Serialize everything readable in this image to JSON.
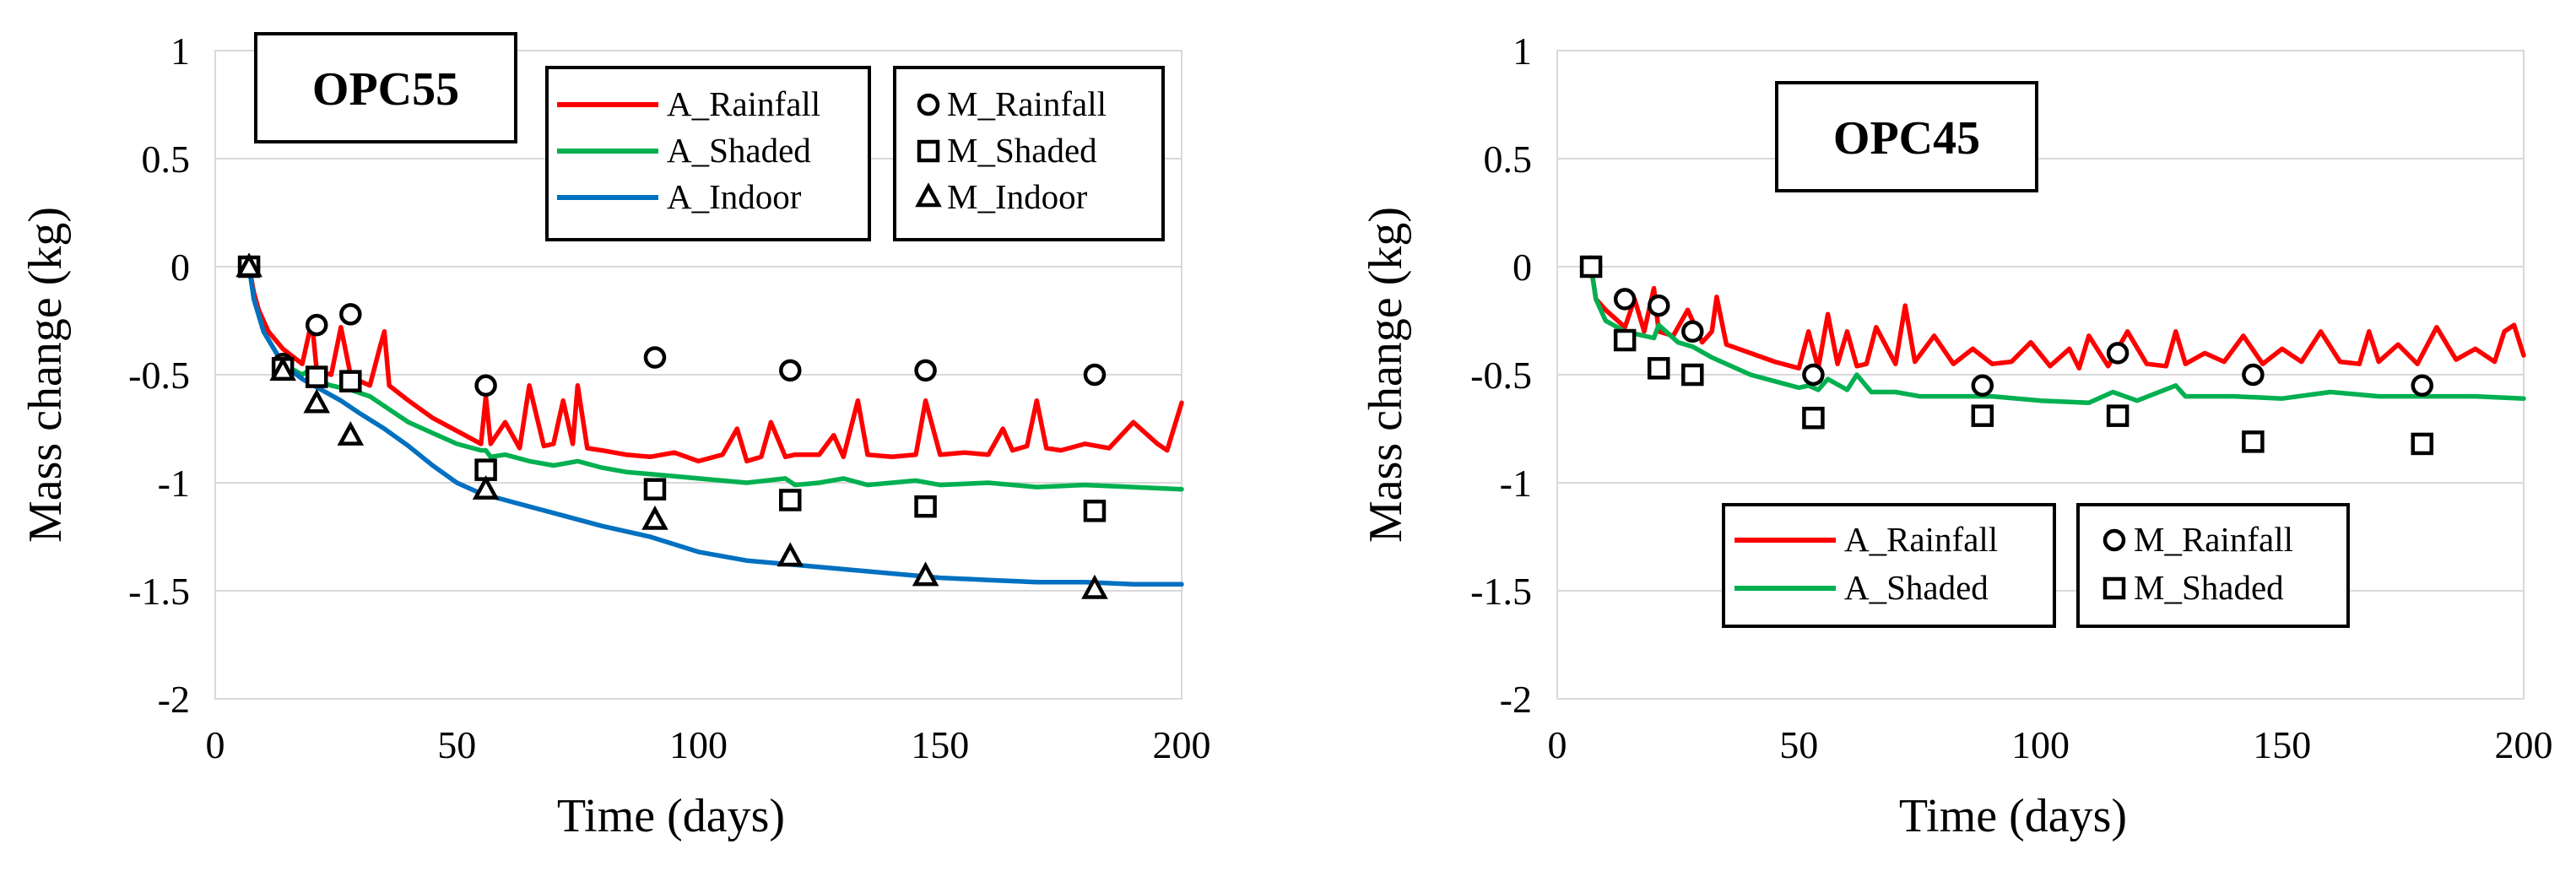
{
  "chart_data": [
    {
      "type": "line",
      "title": "OPC55",
      "xlabel": "Time (days)",
      "ylabel": "Mass change (kg)",
      "xlim": [
        0,
        200
      ],
      "ylim": [
        -2,
        1
      ],
      "xticks": [
        0,
        50,
        100,
        150,
        200
      ],
      "yticks": [
        1,
        0.5,
        0,
        -0.5,
        -1,
        -1.5,
        -2
      ],
      "grid": true,
      "series": [
        {
          "name": "A_Rainfall",
          "kind": "line",
          "color": "#ff0000",
          "x": [
            7,
            8,
            9,
            11,
            14,
            18,
            20,
            21,
            24,
            26,
            28,
            30,
            32,
            34,
            35,
            36,
            40,
            45,
            50,
            55,
            56,
            57,
            60,
            63,
            65,
            68,
            70,
            72,
            74,
            75,
            77,
            80,
            85,
            90,
            95,
            100,
            105,
            108,
            110,
            113,
            115,
            118,
            120,
            125,
            128,
            130,
            133,
            135,
            140,
            145,
            147,
            150,
            155,
            160,
            163,
            165,
            168,
            170,
            172,
            175,
            180,
            185,
            190,
            195,
            197,
            200
          ],
          "y": [
            0,
            -0.12,
            -0.2,
            -0.3,
            -0.38,
            -0.45,
            -0.25,
            -0.48,
            -0.5,
            -0.28,
            -0.5,
            -0.53,
            -0.55,
            -0.38,
            -0.3,
            -0.55,
            -0.62,
            -0.7,
            -0.76,
            -0.82,
            -0.6,
            -0.82,
            -0.72,
            -0.84,
            -0.55,
            -0.83,
            -0.82,
            -0.62,
            -0.82,
            -0.55,
            -0.84,
            -0.85,
            -0.87,
            -0.88,
            -0.86,
            -0.9,
            -0.87,
            -0.75,
            -0.9,
            -0.88,
            -0.72,
            -0.88,
            -0.87,
            -0.87,
            -0.78,
            -0.88,
            -0.62,
            -0.87,
            -0.88,
            -0.87,
            -0.62,
            -0.87,
            -0.86,
            -0.87,
            -0.75,
            -0.85,
            -0.83,
            -0.62,
            -0.84,
            -0.85,
            -0.82,
            -0.84,
            -0.72,
            -0.82,
            -0.85,
            -0.63
          ]
        },
        {
          "name": "A_Shaded",
          "kind": "line",
          "color": "#00b050",
          "x": [
            7,
            8,
            10,
            14,
            18,
            20,
            21,
            24,
            28,
            32,
            36,
            40,
            45,
            50,
            55,
            56,
            57,
            60,
            65,
            70,
            75,
            80,
            85,
            90,
            95,
            100,
            110,
            118,
            120,
            125,
            130,
            135,
            140,
            145,
            150,
            160,
            170,
            180,
            190,
            200
          ],
          "y": [
            0,
            -0.15,
            -0.3,
            -0.45,
            -0.5,
            -0.47,
            -0.53,
            -0.55,
            -0.57,
            -0.6,
            -0.66,
            -0.72,
            -0.77,
            -0.82,
            -0.85,
            -0.85,
            -0.88,
            -0.87,
            -0.9,
            -0.92,
            -0.9,
            -0.93,
            -0.95,
            -0.96,
            -0.97,
            -0.98,
            -1.0,
            -0.98,
            -1.01,
            -1.0,
            -0.98,
            -1.01,
            -1.0,
            -0.99,
            -1.01,
            -1.0,
            -1.02,
            -1.01,
            -1.02,
            -1.03
          ]
        },
        {
          "name": "A_Indoor",
          "kind": "line",
          "color": "#0070c0",
          "x": [
            7,
            8,
            10,
            14,
            18,
            22,
            26,
            30,
            35,
            40,
            45,
            50,
            55,
            60,
            65,
            70,
            80,
            90,
            100,
            110,
            120,
            130,
            140,
            150,
            160,
            170,
            180,
            190,
            200
          ],
          "y": [
            0,
            -0.15,
            -0.3,
            -0.45,
            -0.52,
            -0.57,
            -0.62,
            -0.68,
            -0.75,
            -0.83,
            -0.92,
            -1.0,
            -1.05,
            -1.08,
            -1.11,
            -1.14,
            -1.2,
            -1.25,
            -1.32,
            -1.36,
            -1.38,
            -1.4,
            -1.42,
            -1.44,
            -1.45,
            -1.46,
            -1.46,
            -1.47,
            -1.47
          ]
        },
        {
          "name": "M_Rainfall",
          "kind": "marker",
          "marker": "circle",
          "x": [
            7,
            14,
            21,
            28,
            56,
            91,
            119,
            147,
            182
          ],
          "y": [
            0,
            -0.45,
            -0.27,
            -0.22,
            -0.55,
            -0.42,
            -0.48,
            -0.48,
            -0.5
          ]
        },
        {
          "name": "M_Shaded",
          "kind": "marker",
          "marker": "square",
          "x": [
            7,
            14,
            21,
            28,
            56,
            91,
            119,
            147,
            182
          ],
          "y": [
            0,
            -0.47,
            -0.51,
            -0.53,
            -0.94,
            -1.03,
            -1.08,
            -1.11,
            -1.13
          ]
        },
        {
          "name": "M_Indoor",
          "kind": "marker",
          "marker": "triangle",
          "x": [
            7,
            14,
            21,
            28,
            56,
            91,
            119,
            147,
            182
          ],
          "y": [
            0,
            -0.48,
            -0.63,
            -0.78,
            -1.03,
            -1.17,
            -1.34,
            -1.43,
            -1.49
          ]
        }
      ],
      "legend": [
        {
          "position": "top-center",
          "entries": [
            "A_Rainfall",
            "A_Shaded",
            "A_Indoor"
          ]
        },
        {
          "position": "top-right",
          "entries": [
            "M_Rainfall",
            "M_Shaded",
            "M_Indoor"
          ]
        }
      ]
    },
    {
      "type": "line",
      "title": "OPC45",
      "xlabel": "Time (days)",
      "ylabel": "Mass change (kg)",
      "xlim": [
        0,
        200
      ],
      "ylim": [
        -2,
        1
      ],
      "xticks": [
        0,
        50,
        100,
        150,
        200
      ],
      "yticks": [
        1,
        0.5,
        0,
        -0.5,
        -1,
        -1.5,
        -2
      ],
      "grid": true,
      "series": [
        {
          "name": "A_Rainfall",
          "kind": "line",
          "color": "#ff0000",
          "x": [
            7,
            8,
            10,
            14,
            16,
            18,
            20,
            21,
            24,
            27,
            30,
            32,
            33,
            35,
            40,
            45,
            50,
            52,
            54,
            56,
            58,
            60,
            62,
            64,
            66,
            70,
            72,
            74,
            78,
            82,
            86,
            90,
            94,
            98,
            102,
            106,
            108,
            110,
            114,
            118,
            122,
            126,
            128,
            130,
            134,
            138,
            142,
            146,
            150,
            154,
            158,
            162,
            166,
            168,
            170,
            174,
            178,
            182,
            186,
            190,
            194,
            196,
            198,
            200
          ],
          "y": [
            0,
            -0.15,
            -0.2,
            -0.28,
            -0.15,
            -0.3,
            -0.1,
            -0.3,
            -0.32,
            -0.2,
            -0.35,
            -0.3,
            -0.14,
            -0.36,
            -0.4,
            -0.44,
            -0.47,
            -0.3,
            -0.47,
            -0.22,
            -0.45,
            -0.3,
            -0.46,
            -0.45,
            -0.28,
            -0.45,
            -0.18,
            -0.44,
            -0.32,
            -0.45,
            -0.38,
            -0.45,
            -0.44,
            -0.35,
            -0.46,
            -0.38,
            -0.47,
            -0.32,
            -0.46,
            -0.3,
            -0.45,
            -0.46,
            -0.3,
            -0.45,
            -0.4,
            -0.44,
            -0.32,
            -0.45,
            -0.38,
            -0.44,
            -0.3,
            -0.44,
            -0.45,
            -0.3,
            -0.44,
            -0.36,
            -0.45,
            -0.28,
            -0.43,
            -0.38,
            -0.44,
            -0.3,
            -0.27,
            -0.41
          ]
        },
        {
          "name": "A_Shaded",
          "kind": "line",
          "color": "#00b050",
          "x": [
            7,
            8,
            10,
            14,
            20,
            21,
            25,
            28,
            32,
            36,
            40,
            45,
            50,
            52,
            54,
            56,
            60,
            62,
            65,
            70,
            75,
            80,
            90,
            100,
            110,
            115,
            120,
            128,
            130,
            140,
            150,
            160,
            170,
            180,
            190,
            200
          ],
          "y": [
            0,
            -0.15,
            -0.25,
            -0.3,
            -0.33,
            -0.27,
            -0.35,
            -0.37,
            -0.42,
            -0.46,
            -0.5,
            -0.53,
            -0.56,
            -0.55,
            -0.57,
            -0.52,
            -0.57,
            -0.5,
            -0.58,
            -0.58,
            -0.6,
            -0.6,
            -0.6,
            -0.62,
            -0.63,
            -0.58,
            -0.62,
            -0.55,
            -0.6,
            -0.6,
            -0.61,
            -0.58,
            -0.6,
            -0.6,
            -0.6,
            -0.61
          ]
        },
        {
          "name": "M_Rainfall",
          "kind": "marker",
          "marker": "circle",
          "x": [
            7,
            14,
            21,
            28,
            53,
            88,
            116,
            144,
            179
          ],
          "y": [
            0,
            -0.15,
            -0.18,
            -0.3,
            -0.5,
            -0.55,
            -0.4,
            -0.5,
            -0.55
          ]
        },
        {
          "name": "M_Shaded",
          "kind": "marker",
          "marker": "square",
          "x": [
            7,
            14,
            21,
            28,
            53,
            88,
            116,
            144,
            179
          ],
          "y": [
            0,
            -0.34,
            -0.47,
            -0.5,
            -0.7,
            -0.69,
            -0.69,
            -0.81,
            -0.82
          ]
        }
      ],
      "legend": [
        {
          "position": "bottom-center",
          "entries": [
            "A_Rainfall",
            "A_Shaded"
          ]
        },
        {
          "position": "bottom-right",
          "entries": [
            "M_Rainfall",
            "M_Shaded"
          ]
        }
      ]
    }
  ]
}
